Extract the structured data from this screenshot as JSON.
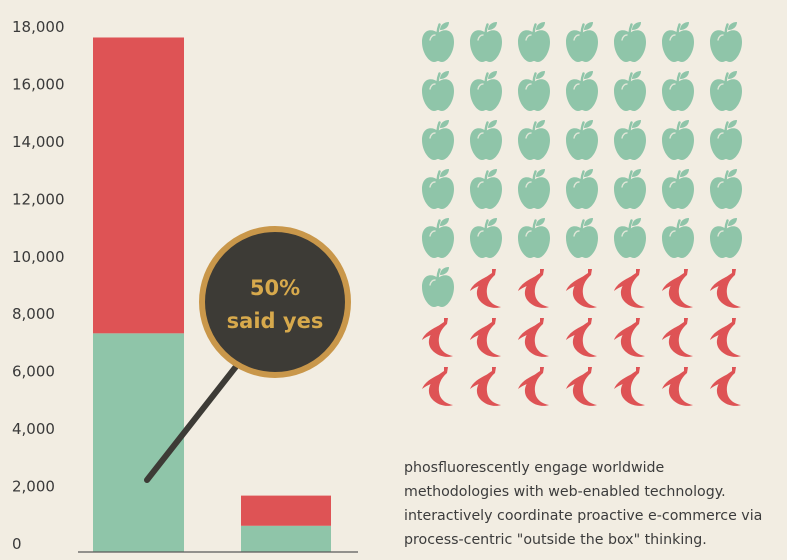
{
  "chart_data": {
    "type": "bar",
    "stacked": true,
    "categories": [
      "",
      ""
    ],
    "series": [
      {
        "color": "#8fc5a9",
        "values": [
          7300,
          600
        ]
      },
      {
        "color": "#de5355",
        "values": [
          10300,
          1050
        ]
      }
    ],
    "ylim": [
      0,
      18000
    ],
    "yticks": [
      "0",
      "2,000",
      "4,000",
      "6,000",
      "8,000",
      "10,000",
      "12,000",
      "14,000",
      "16,000",
      "18,000"
    ],
    "grid": false,
    "callout": {
      "line1": "50%",
      "line2": "said yes"
    }
  },
  "pictograph": {
    "columns": 7,
    "apple_count": 36,
    "banana_count": 20,
    "apple_icon": "apple-icon",
    "banana_icon": "banana-icon",
    "apple_color": "#8fc5a9",
    "banana_color": "#de5355"
  },
  "caption": {
    "line1": "phosfluorescently engage worldwide",
    "line2": "methodologies with web-enabled technology.",
    "line3": "interactively coordinate proactive e-commerce via",
    "line4": "process-centric \"outside the box\" thinking."
  },
  "colors": {
    "background": "#f2ede2",
    "callout_fill": "#3d3b36",
    "callout_ring": "#c9974a"
  }
}
